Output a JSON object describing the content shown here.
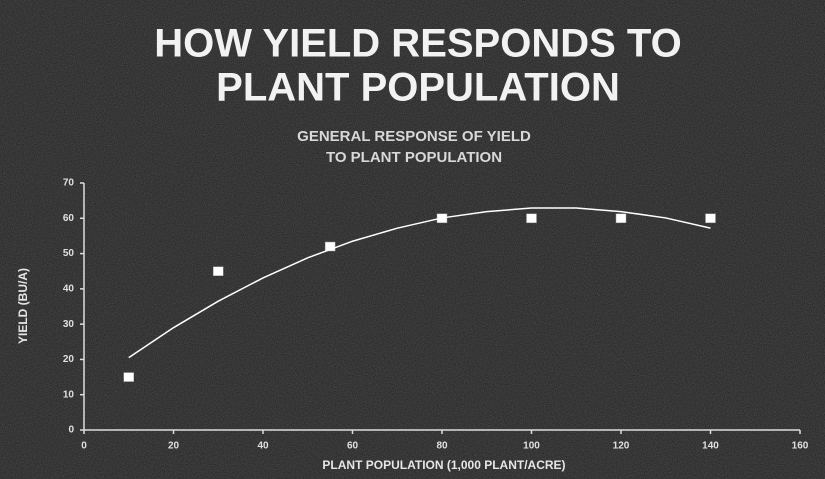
{
  "chart_data": {
    "type": "scatter",
    "title": [
      "HOW YIELD RESPONDS TO",
      "PLANT POPULATION"
    ],
    "subtitle": [
      "GENERAL RESPONSE OF YIELD",
      "TO PLANT POPULATION"
    ],
    "x_label": "PLANT POPULATION (1,000 PLANT/ACRE)",
    "y_label": "YIELD (BU/A)",
    "xlim": [
      0,
      160
    ],
    "ylim": [
      0,
      70
    ],
    "xticks": [
      0,
      20,
      40,
      60,
      80,
      100,
      120,
      140,
      160
    ],
    "yticks": [
      0,
      10,
      20,
      30,
      40,
      50,
      60,
      70
    ],
    "series": [
      {
        "style": "markers",
        "color": "#ffffff",
        "x": [
          10,
          30,
          55,
          80,
          100,
          120,
          140
        ],
        "values": [
          15,
          45,
          52,
          60,
          60,
          60,
          60
        ]
      },
      {
        "style": "line",
        "color": "#ffffff",
        "x": [
          10,
          20,
          30,
          40,
          50,
          60,
          70,
          80,
          90,
          100,
          110,
          120,
          130,
          140
        ],
        "values": [
          20.5,
          29.0,
          36.5,
          43.1,
          48.8,
          53.5,
          57.2,
          60.1,
          61.9,
          62.9,
          62.9,
          61.9,
          60.1,
          57.2
        ]
      }
    ]
  }
}
